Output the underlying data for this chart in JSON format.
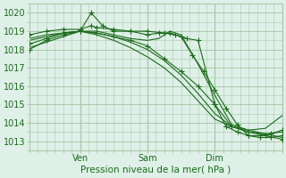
{
  "title": "Pression niveau de la mer( hPa )",
  "ylabel_ticks": [
    1013,
    1014,
    1015,
    1016,
    1017,
    1018,
    1019,
    1020
  ],
  "ylim": [
    1012.5,
    1020.5
  ],
  "xlim": [
    0,
    90
  ],
  "xtick_positions": [
    18,
    42,
    66,
    90
  ],
  "xtick_labels": [
    "Ven",
    "Sam",
    "Dim",
    ""
  ],
  "bg_color": "#dff0e8",
  "grid_color": "#aacaaa",
  "line_color": "#1a6b1a",
  "series": [
    {
      "points": [
        [
          0,
          1018.0
        ],
        [
          6,
          1018.5
        ],
        [
          12,
          1018.8
        ],
        [
          18,
          1019.0
        ],
        [
          22,
          1020.0
        ],
        [
          26,
          1019.3
        ],
        [
          30,
          1019.0
        ],
        [
          36,
          1019.0
        ],
        [
          42,
          1019.0
        ],
        [
          48,
          1018.9
        ],
        [
          52,
          1018.8
        ],
        [
          56,
          1018.6
        ],
        [
          60,
          1018.5
        ],
        [
          66,
          1015.0
        ],
        [
          72,
          1013.8
        ],
        [
          78,
          1013.5
        ],
        [
          84,
          1013.3
        ],
        [
          90,
          1013.1
        ]
      ],
      "marker": true
    },
    {
      "points": [
        [
          0,
          1018.6
        ],
        [
          6,
          1018.8
        ],
        [
          12,
          1018.9
        ],
        [
          18,
          1019.0
        ],
        [
          24,
          1019.0
        ],
        [
          30,
          1018.8
        ],
        [
          36,
          1018.6
        ],
        [
          42,
          1018.5
        ],
        [
          46,
          1018.6
        ],
        [
          50,
          1019.0
        ],
        [
          54,
          1018.8
        ],
        [
          60,
          1017.2
        ],
        [
          66,
          1015.5
        ],
        [
          72,
          1013.9
        ],
        [
          78,
          1013.6
        ],
        [
          84,
          1013.4
        ],
        [
          90,
          1013.2
        ]
      ],
      "marker": false
    },
    {
      "points": [
        [
          0,
          1018.3
        ],
        [
          6,
          1018.6
        ],
        [
          12,
          1018.9
        ],
        [
          18,
          1019.0
        ],
        [
          24,
          1018.9
        ],
        [
          30,
          1018.7
        ],
        [
          36,
          1018.5
        ],
        [
          42,
          1018.2
        ],
        [
          48,
          1017.5
        ],
        [
          54,
          1016.8
        ],
        [
          60,
          1016.0
        ],
        [
          66,
          1015.0
        ],
        [
          70,
          1013.8
        ],
        [
          74,
          1013.5
        ],
        [
          78,
          1013.3
        ],
        [
          82,
          1013.3
        ],
        [
          86,
          1013.4
        ],
        [
          90,
          1013.6
        ]
      ],
      "marker": true
    },
    {
      "points": [
        [
          0,
          1018.1
        ],
        [
          6,
          1018.4
        ],
        [
          12,
          1018.7
        ],
        [
          18,
          1019.0
        ],
        [
          24,
          1018.8
        ],
        [
          30,
          1018.5
        ],
        [
          36,
          1018.1
        ],
        [
          42,
          1017.6
        ],
        [
          48,
          1017.0
        ],
        [
          54,
          1016.2
        ],
        [
          60,
          1015.2
        ],
        [
          66,
          1014.2
        ],
        [
          72,
          1013.8
        ],
        [
          78,
          1013.6
        ],
        [
          84,
          1013.7
        ],
        [
          90,
          1014.4
        ]
      ],
      "marker": false
    },
    {
      "points": [
        [
          0,
          1018.8
        ],
        [
          6,
          1019.0
        ],
        [
          12,
          1019.1
        ],
        [
          18,
          1019.1
        ],
        [
          22,
          1019.3
        ],
        [
          24,
          1019.2
        ],
        [
          30,
          1019.1
        ],
        [
          36,
          1019.0
        ],
        [
          42,
          1018.8
        ],
        [
          46,
          1018.9
        ],
        [
          50,
          1018.9
        ],
        [
          54,
          1018.7
        ],
        [
          58,
          1017.7
        ],
        [
          62,
          1016.8
        ],
        [
          66,
          1015.8
        ],
        [
          70,
          1014.8
        ],
        [
          74,
          1013.9
        ],
        [
          78,
          1013.3
        ],
        [
          82,
          1013.2
        ],
        [
          86,
          1013.2
        ],
        [
          90,
          1013.3
        ]
      ],
      "marker": true
    },
    {
      "points": [
        [
          0,
          1018.5
        ],
        [
          6,
          1018.7
        ],
        [
          12,
          1018.9
        ],
        [
          18,
          1019.0
        ],
        [
          24,
          1018.9
        ],
        [
          30,
          1018.7
        ],
        [
          36,
          1018.4
        ],
        [
          42,
          1018.0
        ],
        [
          48,
          1017.4
        ],
        [
          54,
          1016.6
        ],
        [
          60,
          1015.6
        ],
        [
          66,
          1014.5
        ],
        [
          72,
          1013.8
        ],
        [
          78,
          1013.5
        ],
        [
          84,
          1013.4
        ],
        [
          90,
          1013.5
        ]
      ],
      "marker": false
    }
  ],
  "marker": "+",
  "marker_size": 4.0
}
